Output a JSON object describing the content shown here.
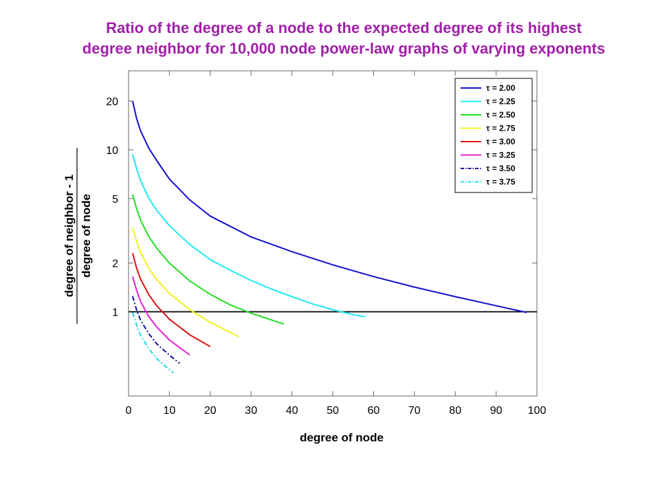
{
  "chart_data": {
    "type": "line",
    "title_line1": "Ratio of the degree of a node to the expected degree of its highest",
    "title_line2": "degree neighbor for 10,000 node power-law graphs of varying exponents",
    "xlabel": "degree of  node",
    "ylabel_numerator": "degree of neighbor - 1",
    "ylabel_denominator": "degree of node",
    "xlim": [
      0,
      100
    ],
    "ylim": [
      0.5,
      32
    ],
    "yscale": "log",
    "xticks": [
      0,
      10,
      20,
      30,
      40,
      50,
      60,
      70,
      80,
      90,
      100
    ],
    "yticks": [
      1,
      2,
      5,
      10,
      20
    ],
    "reference_line": {
      "y": 1,
      "color": "#000000"
    },
    "grid": false,
    "legend_position": "top-right",
    "series": [
      {
        "name": "τ = 2.00",
        "color": "#1010d0",
        "dash": "solid",
        "x": [
          1,
          2,
          3,
          5,
          7,
          10,
          15,
          20,
          30,
          40,
          50,
          60,
          70,
          80,
          90,
          97.5
        ],
        "y": [
          20,
          15.5,
          13,
          10.2,
          8.5,
          6.6,
          4.9,
          3.9,
          2.9,
          2.35,
          1.95,
          1.65,
          1.42,
          1.24,
          1.09,
          0.99
        ]
      },
      {
        "name": "τ = 2.25",
        "color": "#20e8f0",
        "dash": "solid",
        "x": [
          1,
          2,
          3,
          5,
          7,
          10,
          15,
          20,
          25,
          30,
          35,
          40,
          45,
          50,
          55,
          58
        ],
        "y": [
          9.4,
          7.6,
          6.4,
          5.0,
          4.2,
          3.4,
          2.6,
          2.1,
          1.8,
          1.56,
          1.38,
          1.24,
          1.12,
          1.03,
          0.96,
          0.93
        ]
      },
      {
        "name": "τ = 2.50",
        "color": "#20e020",
        "dash": "solid",
        "x": [
          1,
          2,
          3,
          5,
          7,
          10,
          15,
          20,
          25,
          30,
          35,
          38
        ],
        "y": [
          5.3,
          4.3,
          3.65,
          2.9,
          2.45,
          2.0,
          1.55,
          1.28,
          1.1,
          0.98,
          0.89,
          0.84
        ]
      },
      {
        "name": "τ = 2.75",
        "color": "#f0f020",
        "dash": "solid",
        "x": [
          1,
          2,
          3,
          5,
          7,
          10,
          15,
          20,
          27
        ],
        "y": [
          3.3,
          2.7,
          2.3,
          1.85,
          1.57,
          1.3,
          1.03,
          0.86,
          0.7
        ]
      },
      {
        "name": "τ = 3.00",
        "color": "#e01010",
        "dash": "solid",
        "x": [
          1,
          2,
          3,
          5,
          7,
          10,
          15,
          20
        ],
        "y": [
          2.3,
          1.85,
          1.58,
          1.27,
          1.08,
          0.9,
          0.72,
          0.61
        ]
      },
      {
        "name": "τ = 3.25",
        "color": "#e020d0",
        "dash": "solid",
        "x": [
          1,
          2,
          3,
          5,
          7,
          10,
          15
        ],
        "y": [
          1.65,
          1.35,
          1.15,
          0.93,
          0.8,
          0.67,
          0.54
        ]
      },
      {
        "name": "τ = 3.50",
        "color": "#1010a0",
        "dash": "dashdot",
        "x": [
          1,
          2,
          3,
          5,
          7,
          10,
          12.5
        ],
        "y": [
          1.25,
          1.02,
          0.88,
          0.73,
          0.63,
          0.54,
          0.48
        ]
      },
      {
        "name": "τ = 3.75",
        "color": "#20d8e8",
        "dash": "dashdot",
        "x": [
          1,
          2,
          3,
          5,
          7,
          10,
          11
        ],
        "y": [
          0.99,
          0.82,
          0.71,
          0.59,
          0.51,
          0.44,
          0.42
        ]
      }
    ]
  }
}
